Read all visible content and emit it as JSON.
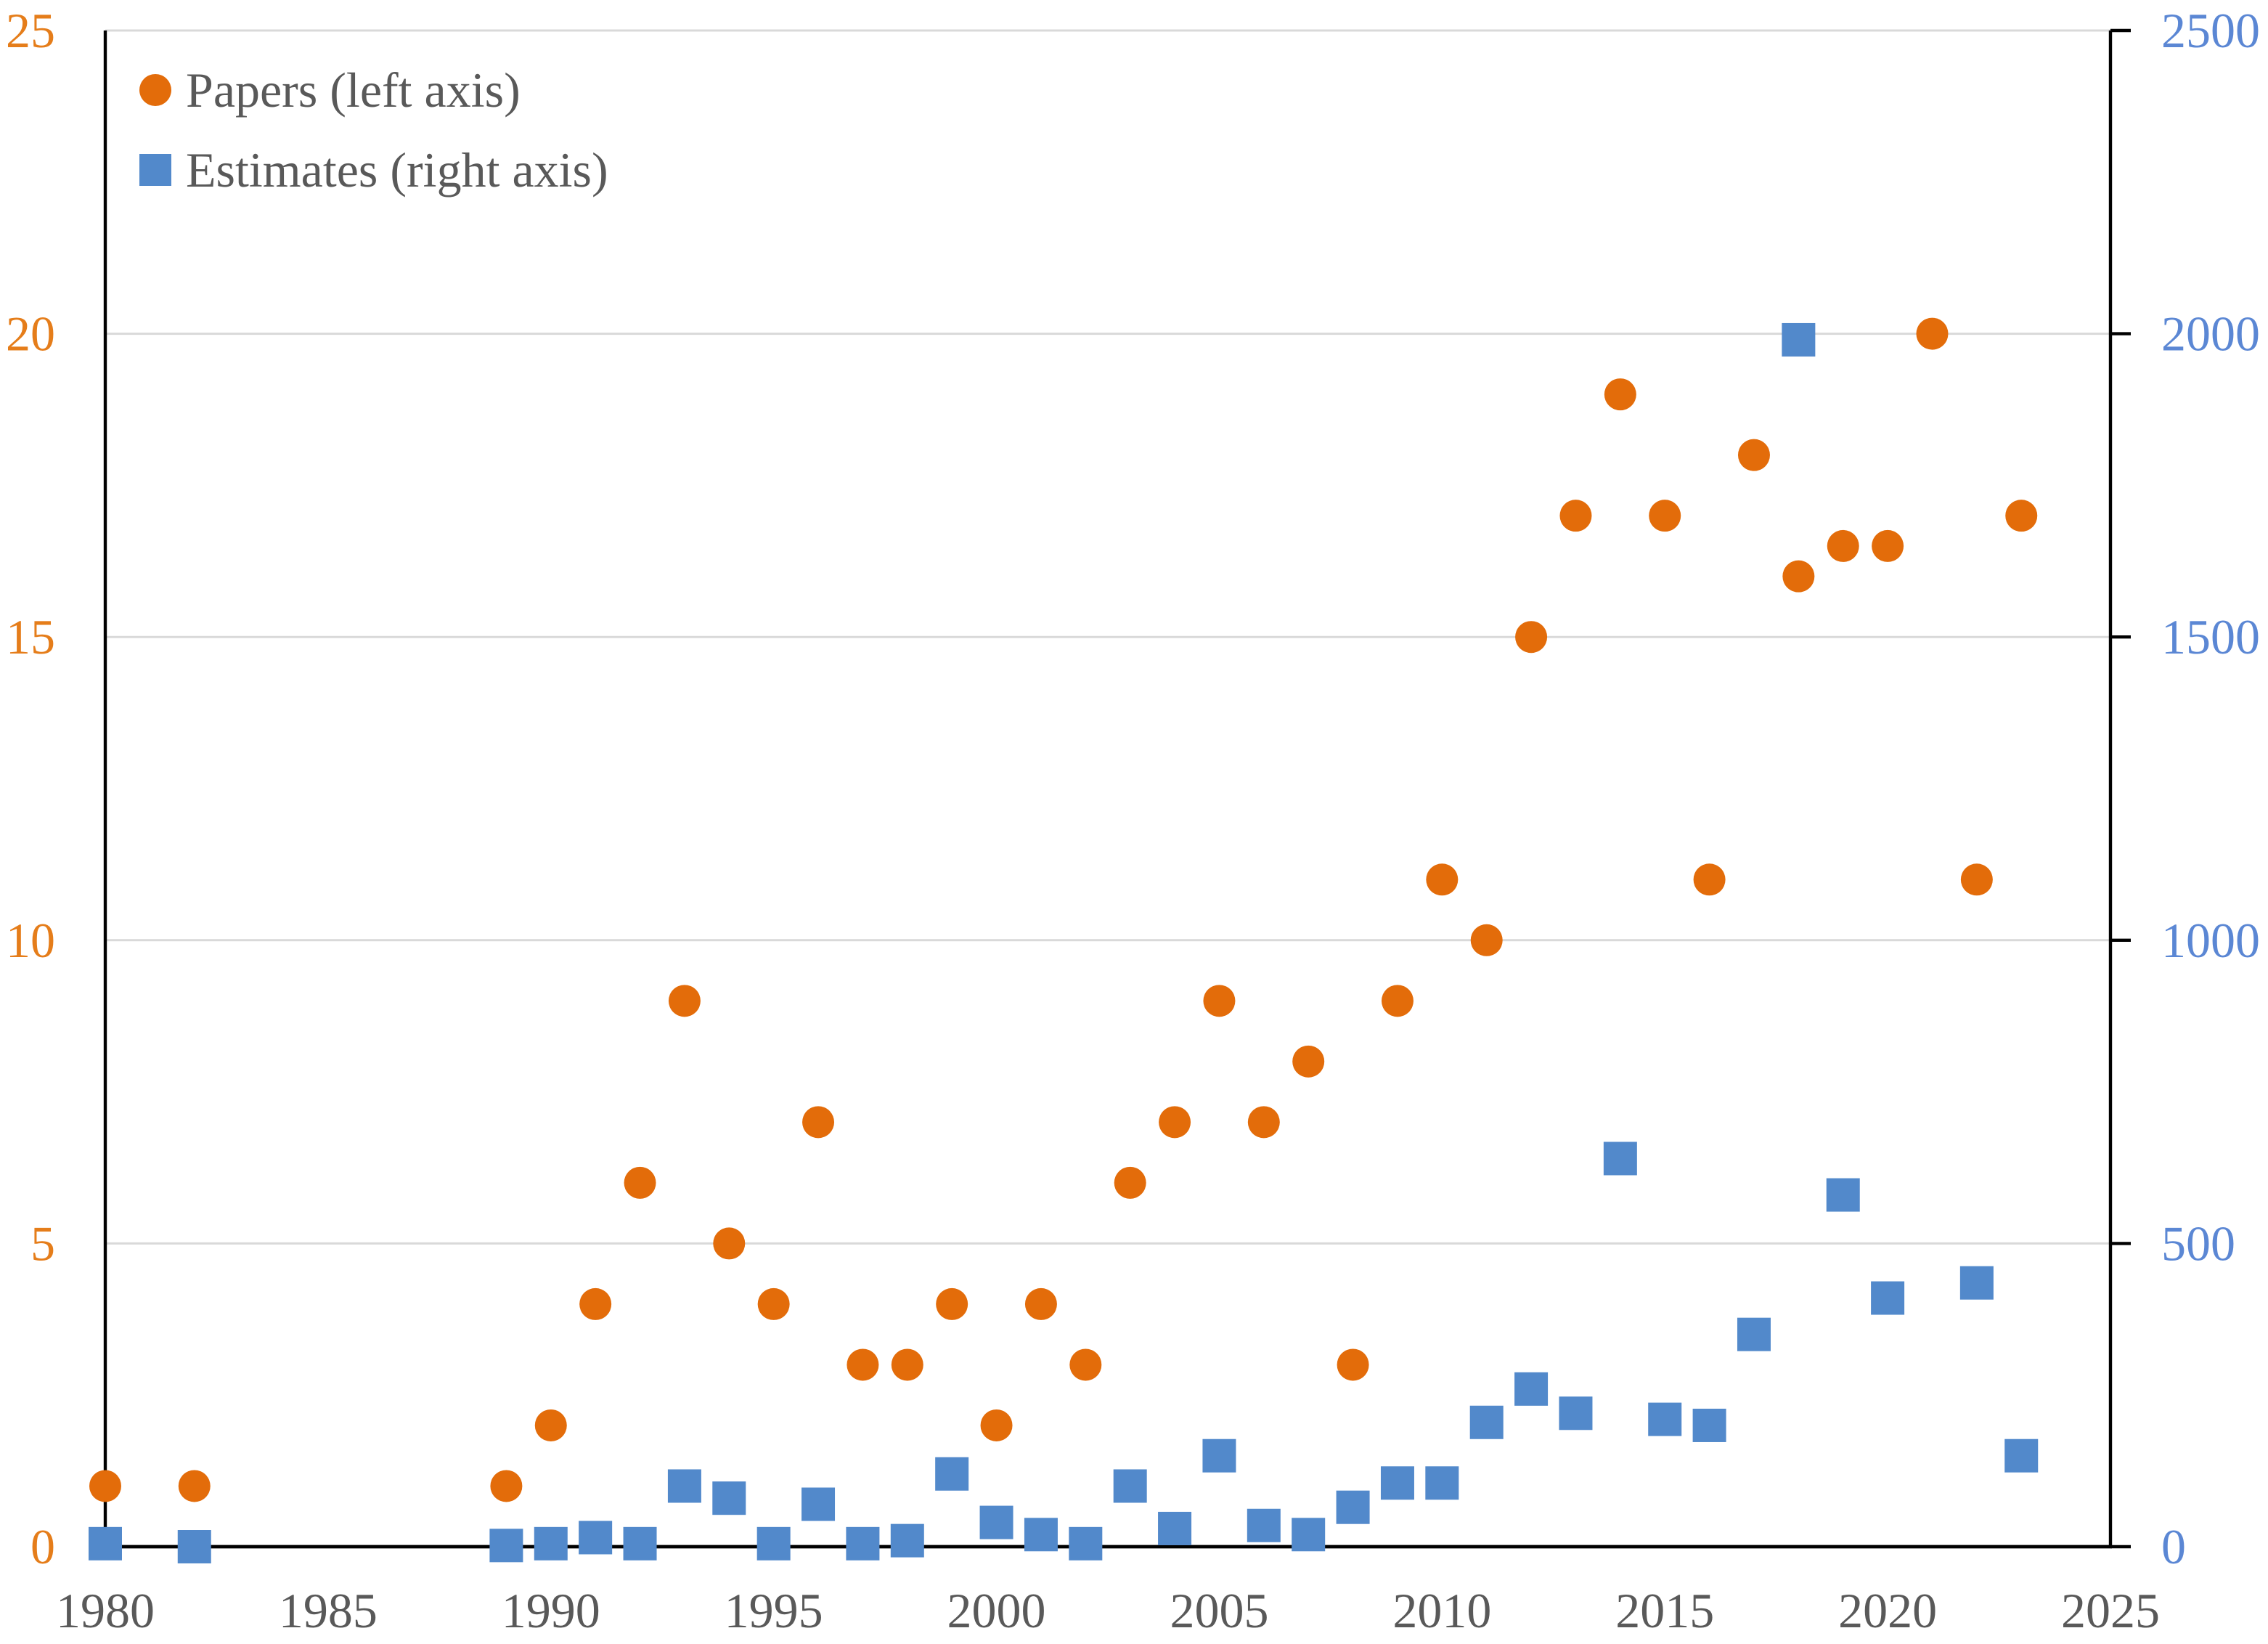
{
  "chart_data": {
    "type": "scatter",
    "title": "",
    "xlabel": "",
    "ylabel_left": "",
    "ylabel_right": "",
    "grid": true,
    "legend_position": "top-left-inside",
    "x_axis": {
      "min": 1980,
      "max": 2025,
      "tick_labels": [
        "1980",
        "1985",
        "1990",
        "1995",
        "2000",
        "2005",
        "2010",
        "2015",
        "2020",
        "2025"
      ],
      "tick_values": [
        1980,
        1985,
        1990,
        1995,
        2000,
        2005,
        2010,
        2015,
        2020,
        2025
      ],
      "label_color": "#595959"
    },
    "y_axis_left": {
      "min": 0,
      "max": 25,
      "tick_labels": [
        "0",
        "5",
        "10",
        "15",
        "20",
        "25"
      ],
      "tick_values": [
        0,
        5,
        10,
        15,
        20,
        25
      ],
      "label_color": "#e57d1a"
    },
    "y_axis_right": {
      "min": 0,
      "max": 2500,
      "tick_labels": [
        "0",
        "500",
        "1000",
        "1500",
        "2000",
        "2500"
      ],
      "tick_values": [
        0,
        500,
        1000,
        1500,
        2000,
        2500
      ],
      "label_color": "#5b87d4"
    },
    "series": [
      {
        "name": "Papers (left axis)",
        "axis": "left",
        "marker": "circle",
        "color": "#e36c0a",
        "points": [
          [
            1980,
            1
          ],
          [
            1982,
            1
          ],
          [
            1989,
            1
          ],
          [
            1990,
            2
          ],
          [
            1991,
            4
          ],
          [
            1992,
            6
          ],
          [
            1993,
            9
          ],
          [
            1994,
            5
          ],
          [
            1995,
            4
          ],
          [
            1996,
            7
          ],
          [
            1997,
            3
          ],
          [
            1998,
            3
          ],
          [
            1999,
            4
          ],
          [
            2000,
            2
          ],
          [
            2001,
            4
          ],
          [
            2002,
            3
          ],
          [
            2003,
            6
          ],
          [
            2004,
            7
          ],
          [
            2005,
            9
          ],
          [
            2006,
            7
          ],
          [
            2007,
            8
          ],
          [
            2008,
            3
          ],
          [
            2009,
            9
          ],
          [
            2010,
            11
          ],
          [
            2011,
            10
          ],
          [
            2012,
            15
          ],
          [
            2013,
            17
          ],
          [
            2014,
            19
          ],
          [
            2015,
            17
          ],
          [
            2016,
            11
          ],
          [
            2017,
            18
          ],
          [
            2018,
            16
          ],
          [
            2019,
            16.5
          ],
          [
            2020,
            16.5
          ],
          [
            2021,
            20
          ],
          [
            2022,
            11
          ],
          [
            2023,
            17
          ]
        ]
      },
      {
        "name": "Estimates (right axis)",
        "axis": "right",
        "marker": "square",
        "color": "#5289cb",
        "points": [
          [
            1980,
            5
          ],
          [
            1982,
            0
          ],
          [
            1989,
            2
          ],
          [
            1990,
            5
          ],
          [
            1991,
            15
          ],
          [
            1992,
            5
          ],
          [
            1993,
            100
          ],
          [
            1994,
            80
          ],
          [
            1995,
            5
          ],
          [
            1996,
            70
          ],
          [
            1997,
            5
          ],
          [
            1998,
            10
          ],
          [
            1999,
            120
          ],
          [
            2000,
            40
          ],
          [
            2001,
            20
          ],
          [
            2002,
            5
          ],
          [
            2003,
            100
          ],
          [
            2004,
            30
          ],
          [
            2005,
            150
          ],
          [
            2006,
            35
          ],
          [
            2007,
            20
          ],
          [
            2008,
            65
          ],
          [
            2009,
            105
          ],
          [
            2010,
            105
          ],
          [
            2011,
            205
          ],
          [
            2012,
            260
          ],
          [
            2013,
            220
          ],
          [
            2014,
            640
          ],
          [
            2015,
            210
          ],
          [
            2016,
            200
          ],
          [
            2017,
            350
          ],
          [
            2018,
            1990
          ],
          [
            2019,
            580
          ],
          [
            2020,
            410
          ],
          [
            2022,
            435
          ],
          [
            2023,
            150
          ]
        ]
      }
    ],
    "colors": {
      "gridline": "#d9d9d9",
      "axis_line": "#000000",
      "legend_text": "#595959"
    }
  },
  "legend": {
    "papers": {
      "label": "Papers (left axis)"
    },
    "estimates": {
      "label": "Estimates (right axis)"
    }
  }
}
